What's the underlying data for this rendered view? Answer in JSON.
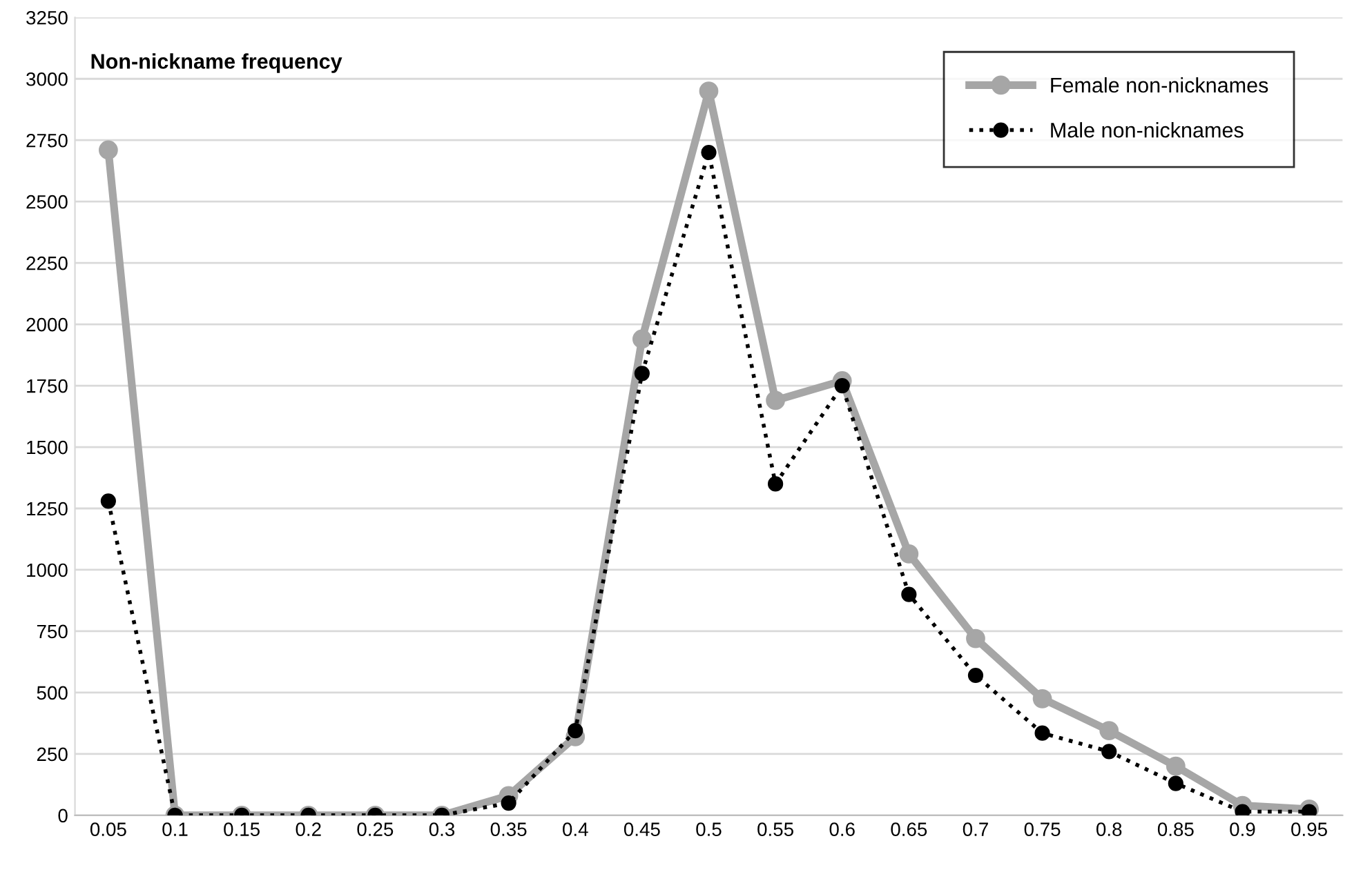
{
  "chart_data": {
    "type": "line",
    "title": "Non-nickname frequency",
    "categories": [
      "0.05",
      "0.1",
      "0.15",
      "0.2",
      "0.25",
      "0.3",
      "0.35",
      "0.4",
      "0.45",
      "0.5",
      "0.55",
      "0.6",
      "0.65",
      "0.7",
      "0.75",
      "0.8",
      "0.85",
      "0.9",
      "0.95"
    ],
    "series": [
      {
        "name": "Female non-nicknames",
        "color": "#a6a6a6",
        "marker": "circle",
        "line_style": "solid",
        "values": [
          2710,
          0,
          0,
          0,
          0,
          0,
          80,
          320,
          1940,
          2950,
          1690,
          1770,
          1065,
          720,
          475,
          345,
          200,
          40,
          25
        ]
      },
      {
        "name": "Male non-nicknames",
        "color": "#000000",
        "marker": "circle",
        "line_style": "dotted",
        "values": [
          1280,
          0,
          0,
          0,
          0,
          0,
          50,
          345,
          1800,
          2700,
          1350,
          1750,
          900,
          570,
          335,
          260,
          130,
          15,
          15
        ]
      }
    ],
    "ylim": [
      0,
      3250
    ],
    "yticks": [
      0,
      250,
      500,
      750,
      1000,
      1250,
      1500,
      1750,
      2000,
      2250,
      2500,
      2750,
      3000,
      3250
    ],
    "grid": "y",
    "legend": "top right"
  }
}
